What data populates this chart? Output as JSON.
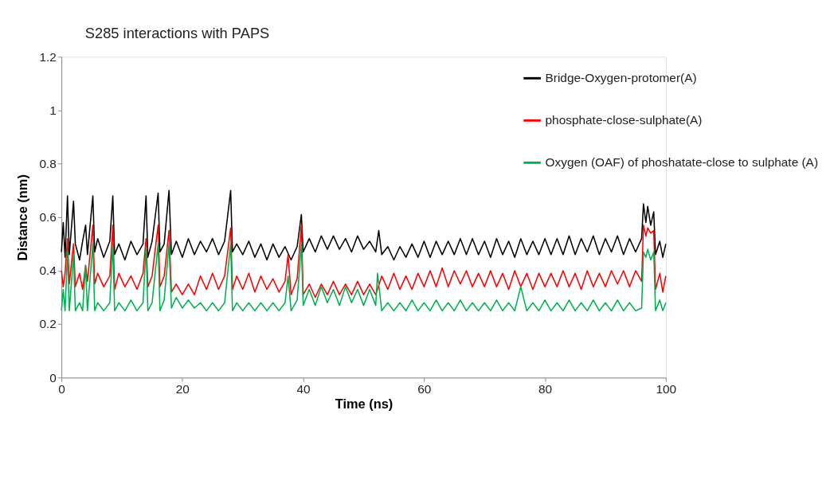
{
  "chart_data": {
    "type": "line",
    "title": "S285 interactions with PAPS",
    "xlabel": "Time (ns)",
    "ylabel": "Distance (nm)",
    "xlim": [
      0,
      100
    ],
    "xticks": [
      0,
      20,
      40,
      60,
      80,
      100
    ],
    "ylim": [
      0,
      1.2
    ],
    "yticks": [
      0,
      0.2,
      0.4,
      0.6,
      0.8,
      1,
      1.2
    ],
    "grid": false,
    "legend": "top right",
    "marker": "none",
    "line_style": "solid",
    "series": [
      {
        "name": "Bridge-Oxygen-protomer(A)",
        "color": "#000000",
        "x": [
          0,
          0.3,
          0.6,
          1,
          1.3,
          2,
          2.3,
          3,
          3.5,
          4,
          4.3,
          5.2,
          5.5,
          6,
          7,
          8,
          8.5,
          8.8,
          9.5,
          10.5,
          11.5,
          12.5,
          13.5,
          14,
          14.3,
          15,
          16,
          16.3,
          17,
          17.8,
          18.2,
          19,
          20,
          21,
          22,
          23,
          24,
          25,
          26,
          27,
          28,
          28.3,
          29,
          30,
          31,
          32,
          33,
          34,
          35,
          36,
          37,
          38,
          39,
          39.7,
          40,
          41,
          42,
          43,
          44,
          45,
          46,
          47,
          48,
          49,
          50,
          51,
          52,
          52.5,
          53,
          54,
          55,
          56,
          57,
          58,
          59,
          60,
          61,
          62,
          63,
          64,
          65,
          66,
          67,
          68,
          69,
          70,
          71,
          72,
          73,
          74,
          75,
          76,
          77,
          78,
          79,
          80,
          81,
          82,
          83,
          84,
          85,
          86,
          87,
          88,
          89,
          90,
          91,
          92,
          93,
          94,
          95,
          96,
          96.3,
          96.7,
          97,
          97.5,
          98,
          98.3,
          99,
          99.5,
          100
        ],
        "values": [
          0.47,
          0.58,
          0.45,
          0.68,
          0.46,
          0.66,
          0.5,
          0.44,
          0.51,
          0.57,
          0.46,
          0.68,
          0.47,
          0.52,
          0.45,
          0.51,
          0.68,
          0.46,
          0.5,
          0.44,
          0.51,
          0.46,
          0.5,
          0.68,
          0.45,
          0.51,
          0.69,
          0.47,
          0.5,
          0.7,
          0.46,
          0.51,
          0.45,
          0.52,
          0.46,
          0.51,
          0.47,
          0.52,
          0.46,
          0.51,
          0.7,
          0.47,
          0.5,
          0.46,
          0.51,
          0.45,
          0.5,
          0.44,
          0.5,
          0.45,
          0.49,
          0.44,
          0.49,
          0.61,
          0.47,
          0.52,
          0.47,
          0.53,
          0.48,
          0.53,
          0.48,
          0.52,
          0.47,
          0.53,
          0.48,
          0.51,
          0.47,
          0.55,
          0.46,
          0.49,
          0.44,
          0.49,
          0.45,
          0.5,
          0.45,
          0.51,
          0.45,
          0.51,
          0.46,
          0.51,
          0.46,
          0.52,
          0.46,
          0.52,
          0.46,
          0.51,
          0.45,
          0.52,
          0.46,
          0.51,
          0.45,
          0.52,
          0.46,
          0.51,
          0.46,
          0.52,
          0.46,
          0.52,
          0.46,
          0.53,
          0.46,
          0.52,
          0.47,
          0.53,
          0.46,
          0.52,
          0.47,
          0.53,
          0.46,
          0.52,
          0.47,
          0.52,
          0.65,
          0.58,
          0.64,
          0.57,
          0.62,
          0.46,
          0.51,
          0.45,
          0.5
        ]
      },
      {
        "name": "phosphate-close-sulphate(A)",
        "color": "#ff0000",
        "x": [
          0,
          0.3,
          0.6,
          1,
          1.3,
          2,
          2.3,
          3,
          3.5,
          4,
          4.3,
          5.2,
          5.5,
          6,
          7,
          8,
          8.5,
          8.8,
          9.5,
          10.5,
          11.5,
          12.5,
          13.5,
          14,
          14.3,
          15,
          16,
          16.3,
          17,
          17.8,
          18.2,
          19,
          20,
          21,
          22,
          23,
          24,
          25,
          26,
          27,
          28,
          28.3,
          29,
          30,
          31,
          32,
          33,
          34,
          35,
          36,
          37,
          37.5,
          38,
          39,
          39.7,
          40,
          41,
          42,
          43,
          44,
          45,
          46,
          47,
          48,
          49,
          50,
          51,
          52,
          53,
          54,
          55,
          56,
          57,
          58,
          59,
          60,
          61,
          62,
          63,
          64,
          65,
          66,
          67,
          68,
          69,
          70,
          71,
          72,
          73,
          74,
          75,
          76,
          77,
          78,
          79,
          80,
          81,
          82,
          83,
          84,
          85,
          86,
          87,
          88,
          89,
          90,
          91,
          92,
          93,
          94,
          95,
          96,
          96.3,
          96.7,
          97,
          97.5,
          98,
          98.3,
          99,
          99.5,
          100
        ],
        "values": [
          0.4,
          0.34,
          0.39,
          0.52,
          0.35,
          0.5,
          0.34,
          0.39,
          0.33,
          0.42,
          0.36,
          0.57,
          0.35,
          0.39,
          0.34,
          0.38,
          0.57,
          0.33,
          0.39,
          0.34,
          0.38,
          0.33,
          0.39,
          0.52,
          0.34,
          0.38,
          0.57,
          0.34,
          0.38,
          0.55,
          0.32,
          0.35,
          0.31,
          0.35,
          0.31,
          0.38,
          0.33,
          0.39,
          0.33,
          0.38,
          0.56,
          0.33,
          0.38,
          0.33,
          0.39,
          0.32,
          0.38,
          0.33,
          0.37,
          0.32,
          0.36,
          0.46,
          0.31,
          0.37,
          0.57,
          0.31,
          0.35,
          0.3,
          0.35,
          0.31,
          0.36,
          0.31,
          0.35,
          0.31,
          0.36,
          0.31,
          0.35,
          0.31,
          0.38,
          0.33,
          0.39,
          0.33,
          0.38,
          0.33,
          0.39,
          0.34,
          0.4,
          0.34,
          0.41,
          0.34,
          0.4,
          0.35,
          0.4,
          0.34,
          0.39,
          0.34,
          0.4,
          0.34,
          0.39,
          0.33,
          0.4,
          0.34,
          0.39,
          0.33,
          0.39,
          0.34,
          0.39,
          0.34,
          0.4,
          0.34,
          0.39,
          0.33,
          0.4,
          0.34,
          0.39,
          0.34,
          0.4,
          0.35,
          0.4,
          0.34,
          0.4,
          0.36,
          0.57,
          0.53,
          0.56,
          0.54,
          0.55,
          0.33,
          0.39,
          0.32,
          0.38
        ]
      },
      {
        "name": "Oxygen (OAF) of phoshatate-close to sulphate (A)",
        "color": "#00b050",
        "x": [
          0,
          0.3,
          0.6,
          1,
          1.3,
          2,
          2.3,
          3,
          3.5,
          4,
          4.3,
          5.2,
          5.5,
          6,
          7,
          8,
          8.5,
          8.8,
          9.5,
          10.5,
          11.5,
          12.5,
          13.5,
          14,
          14.3,
          15,
          16,
          16.3,
          17,
          17.8,
          18.2,
          19,
          20,
          21,
          22,
          23,
          24,
          25,
          26,
          27,
          28,
          28.3,
          29,
          30,
          31,
          32,
          33,
          34,
          35,
          36,
          37,
          37.5,
          38,
          39,
          39.7,
          40,
          41,
          42,
          43,
          44,
          45,
          46,
          47,
          48,
          49,
          50,
          51,
          52,
          52.3,
          53,
          54,
          55,
          56,
          57,
          58,
          59,
          60,
          61,
          62,
          63,
          64,
          65,
          66,
          67,
          68,
          69,
          70,
          71,
          72,
          73,
          74,
          75,
          76,
          77,
          78,
          79,
          80,
          81,
          82,
          83,
          84,
          85,
          86,
          87,
          88,
          89,
          90,
          91,
          92,
          93,
          94,
          95,
          96,
          96.3,
          96.7,
          97,
          97.5,
          98,
          98.3,
          99,
          99.5,
          100
        ],
        "values": [
          0.25,
          0.33,
          0.25,
          0.47,
          0.25,
          0.46,
          0.25,
          0.28,
          0.25,
          0.42,
          0.25,
          0.5,
          0.25,
          0.28,
          0.25,
          0.28,
          0.5,
          0.25,
          0.28,
          0.25,
          0.29,
          0.25,
          0.28,
          0.49,
          0.25,
          0.28,
          0.5,
          0.25,
          0.29,
          0.5,
          0.26,
          0.3,
          0.26,
          0.29,
          0.26,
          0.28,
          0.25,
          0.28,
          0.25,
          0.28,
          0.5,
          0.25,
          0.28,
          0.25,
          0.28,
          0.25,
          0.28,
          0.25,
          0.28,
          0.25,
          0.28,
          0.38,
          0.25,
          0.29,
          0.5,
          0.27,
          0.33,
          0.27,
          0.34,
          0.28,
          0.33,
          0.27,
          0.34,
          0.28,
          0.33,
          0.27,
          0.33,
          0.27,
          0.39,
          0.25,
          0.28,
          0.25,
          0.28,
          0.25,
          0.29,
          0.25,
          0.28,
          0.25,
          0.29,
          0.25,
          0.28,
          0.25,
          0.29,
          0.25,
          0.28,
          0.25,
          0.28,
          0.25,
          0.29,
          0.25,
          0.28,
          0.25,
          0.34,
          0.25,
          0.28,
          0.25,
          0.29,
          0.25,
          0.28,
          0.25,
          0.29,
          0.25,
          0.28,
          0.25,
          0.29,
          0.25,
          0.28,
          0.25,
          0.29,
          0.25,
          0.28,
          0.25,
          0.26,
          0.47,
          0.45,
          0.48,
          0.44,
          0.47,
          0.25,
          0.29,
          0.25,
          0.28
        ]
      }
    ]
  }
}
